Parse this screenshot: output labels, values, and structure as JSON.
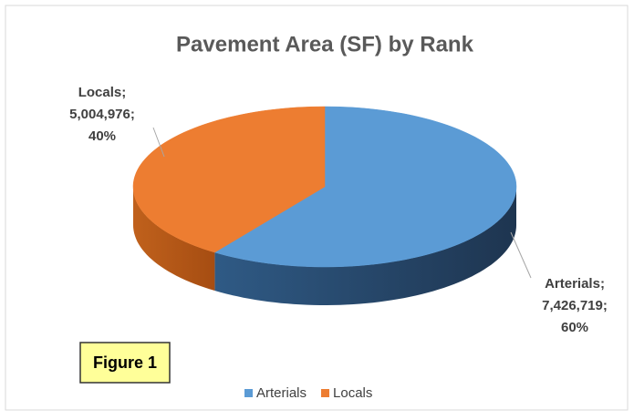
{
  "chart_data": {
    "type": "pie3d",
    "title": "Pavement Area (SF) by Rank",
    "categories": [
      "Arterials",
      "Locals"
    ],
    "values": [
      7426719,
      5004976
    ],
    "value_labels": [
      "7,426,719",
      "5,004,976"
    ],
    "percents": [
      60,
      40
    ],
    "percent_labels": [
      "60%",
      "40%"
    ],
    "label_separator": ";",
    "colors": [
      "#5b9bd5",
      "#ed7d31"
    ],
    "legend": "bottom",
    "annotation": "Figure 1"
  }
}
